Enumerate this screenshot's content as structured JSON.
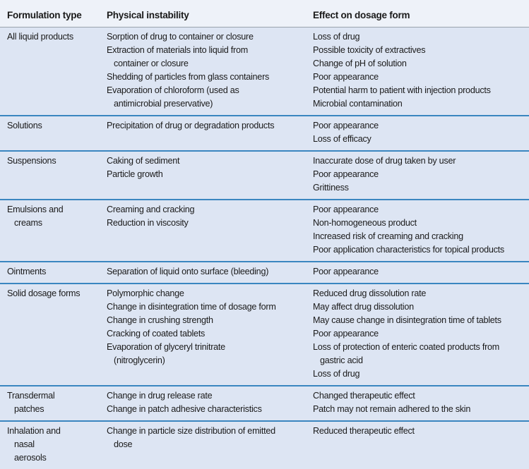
{
  "headers": [
    "Formulation type",
    "Physical instability",
    "Effect on dosage form"
  ],
  "rows": [
    {
      "type": [
        "All liquid products"
      ],
      "instability": [
        "Sorption of drug to container or closure",
        [
          "Extraction of materials into liquid from",
          "container or closure"
        ],
        "Shedding of particles from glass containers",
        [
          "Evaporation of chloroform (used as",
          "antimicrobial preservative)"
        ]
      ],
      "effects": [
        "Loss of drug",
        "Possible toxicity of extractives",
        "Change of pH of solution",
        "Poor appearance",
        "Potential harm to patient with injection products",
        "Microbial contamination"
      ]
    },
    {
      "type": [
        "Solutions"
      ],
      "instability": [
        "Precipitation of drug or degradation products"
      ],
      "effects": [
        "Poor appearance",
        "Loss of efficacy"
      ]
    },
    {
      "type": [
        "Suspensions"
      ],
      "instability": [
        "Caking of sediment",
        "Particle growth"
      ],
      "effects": [
        "Inaccurate dose of drug taken by user",
        "Poor appearance",
        "Grittiness"
      ]
    },
    {
      "type": [
        "Emulsions and",
        "creams"
      ],
      "instability": [
        "Creaming and cracking",
        "Reduction in viscosity"
      ],
      "effects": [
        "Poor appearance",
        "Non-homogeneous product",
        "Increased risk of creaming and cracking",
        "Poor application characteristics for topical products"
      ]
    },
    {
      "type": [
        "Ointments"
      ],
      "instability": [
        "Separation of liquid onto surface (bleeding)"
      ],
      "effects": [
        "Poor appearance"
      ]
    },
    {
      "type": [
        "Solid dosage forms"
      ],
      "instability": [
        "Polymorphic change",
        "Change in disintegration time of dosage form",
        "Change in crushing strength",
        "Cracking of coated tablets",
        [
          "Evaporation of glyceryl trinitrate",
          "(nitroglycerin)"
        ]
      ],
      "effects": [
        "Reduced drug dissolution rate",
        "May affect drug dissolution",
        "May cause change in disintegration time of tablets",
        "Poor appearance",
        [
          "Loss of protection of enteric coated products from",
          "gastric acid"
        ],
        "Loss of drug"
      ]
    },
    {
      "type": [
        "Transdermal",
        "patches"
      ],
      "instability": [
        "Change in drug release rate",
        "Change in patch adhesive characteristics"
      ],
      "effects": [
        "Changed therapeutic effect",
        "Patch may not remain adhered to the skin"
      ]
    },
    {
      "type": [
        "Inhalation and",
        "nasal",
        "aerosols"
      ],
      "instability": [
        [
          "Change in particle size distribution of emitted",
          "dose"
        ]
      ],
      "effects": [
        "Reduced therapeutic effect"
      ]
    }
  ]
}
